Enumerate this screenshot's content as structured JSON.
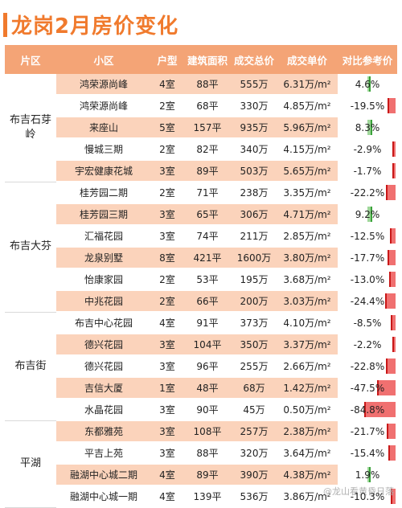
{
  "title": "龙岗2月房价变化",
  "headers": [
    "片区",
    "小区",
    "户型",
    "建筑面积",
    "成交总价",
    "成交单价",
    "对比参考价"
  ],
  "districts": [
    {
      "name": "布吉石芽岭",
      "rows": [
        {
          "community": "鸿荣源尚峰",
          "rooms": "4室",
          "area": "88平",
          "total": "555万",
          "unit": "6.31万/m²",
          "ratio": "4.6%",
          "ratio_value": 4.6
        },
        {
          "community": "鸿荣源尚峰",
          "rooms": "2室",
          "area": "68平",
          "total": "330万",
          "unit": "4.85万/m²",
          "ratio": "-19.5%",
          "ratio_value": -19.5
        },
        {
          "community": "来座山",
          "rooms": "5室",
          "area": "157平",
          "total": "935万",
          "unit": "5.96万/m²",
          "ratio": "8.3%",
          "ratio_value": 8.3
        },
        {
          "community": "慢城三期",
          "rooms": "2室",
          "area": "82平",
          "total": "340万",
          "unit": "4.15万/m²",
          "ratio": "-2.9%",
          "ratio_value": -2.9
        },
        {
          "community": "宇宏健康花城",
          "rooms": "3室",
          "area": "89平",
          "total": "503万",
          "unit": "5.65万/m²",
          "ratio": "-1.7%",
          "ratio_value": -1.7
        }
      ]
    },
    {
      "name": "布吉大芬",
      "rows": [
        {
          "community": "桂芳园二期",
          "rooms": "2室",
          "area": "71平",
          "total": "238万",
          "unit": "3.35万/m²",
          "ratio": "-22.2%",
          "ratio_value": -22.2
        },
        {
          "community": "桂芳园三期",
          "rooms": "3室",
          "area": "65平",
          "total": "306万",
          "unit": "4.71万/m²",
          "ratio": "9.2%",
          "ratio_value": 9.2
        },
        {
          "community": "汇福花园",
          "rooms": "3室",
          "area": "74平",
          "total": "211万",
          "unit": "2.85万/m²",
          "ratio": "-12.5%",
          "ratio_value": -12.5
        },
        {
          "community": "龙泉别墅",
          "rooms": "8室",
          "area": "421平",
          "total": "1600万",
          "unit": "3.80万/m²",
          "ratio": "-17.7%",
          "ratio_value": -17.7
        },
        {
          "community": "怡康家园",
          "rooms": "2室",
          "area": "53平",
          "total": "195万",
          "unit": "3.68万/m²",
          "ratio": "-13.0%",
          "ratio_value": -13.0
        },
        {
          "community": "中兆花园",
          "rooms": "2室",
          "area": "66平",
          "total": "200万",
          "unit": "3.03万/m²",
          "ratio": "-24.4%",
          "ratio_value": -24.4
        }
      ]
    },
    {
      "name": "布吉街",
      "rows": [
        {
          "community": "布吉中心花园",
          "rooms": "4室",
          "area": "91平",
          "total": "373万",
          "unit": "4.10万/m²",
          "ratio": "-8.5%",
          "ratio_value": -8.5
        },
        {
          "community": "德兴花园",
          "rooms": "3室",
          "area": "104平",
          "total": "350万",
          "unit": "3.37万/m²",
          "ratio": "-2.2%",
          "ratio_value": -2.2
        },
        {
          "community": "德兴花园",
          "rooms": "3室",
          "area": "96平",
          "total": "255万",
          "unit": "2.66万/m²",
          "ratio": "-22.8%",
          "ratio_value": -22.8
        },
        {
          "community": "吉信大厦",
          "rooms": "1室",
          "area": "48平",
          "total": "68万",
          "unit": "1.42万/m²",
          "ratio": "-47.5%",
          "ratio_value": -47.5
        },
        {
          "community": "水晶花园",
          "rooms": "3室",
          "area": "90平",
          "total": "45万",
          "unit": "0.50万/m²",
          "ratio": "-84.8%",
          "ratio_value": -84.8
        }
      ]
    },
    {
      "name": "平湖",
      "rows": [
        {
          "community": "东都雅苑",
          "rooms": "3室",
          "area": "108平",
          "total": "257万",
          "unit": "2.38万/m²",
          "ratio": "-21.7%",
          "ratio_value": -21.7
        },
        {
          "community": "平吉上苑",
          "rooms": "3室",
          "area": "88平",
          "total": "320万",
          "unit": "3.64万/m²",
          "ratio": "-15.4%",
          "ratio_value": -15.4
        },
        {
          "community": "融湖中心城二期",
          "rooms": "4室",
          "area": "89平",
          "total": "390万",
          "unit": "4.38万/m²",
          "ratio": "1.9%",
          "ratio_value": 1.9
        },
        {
          "community": "融湖中心城一期",
          "rooms": "4室",
          "area": "139平",
          "total": "536万",
          "unit": "3.86万/m²",
          "ratio": "-10.3%",
          "ratio_value": -10.3
        }
      ]
    }
  ],
  "watermark": "@龙山看黄昏日落",
  "colors": {
    "accent": "#f07a2d",
    "header_bg": "#f4a476",
    "stripe": "#fbd3bb",
    "neg_bar": "#f07070",
    "pos_bar": "#9fd79a"
  }
}
